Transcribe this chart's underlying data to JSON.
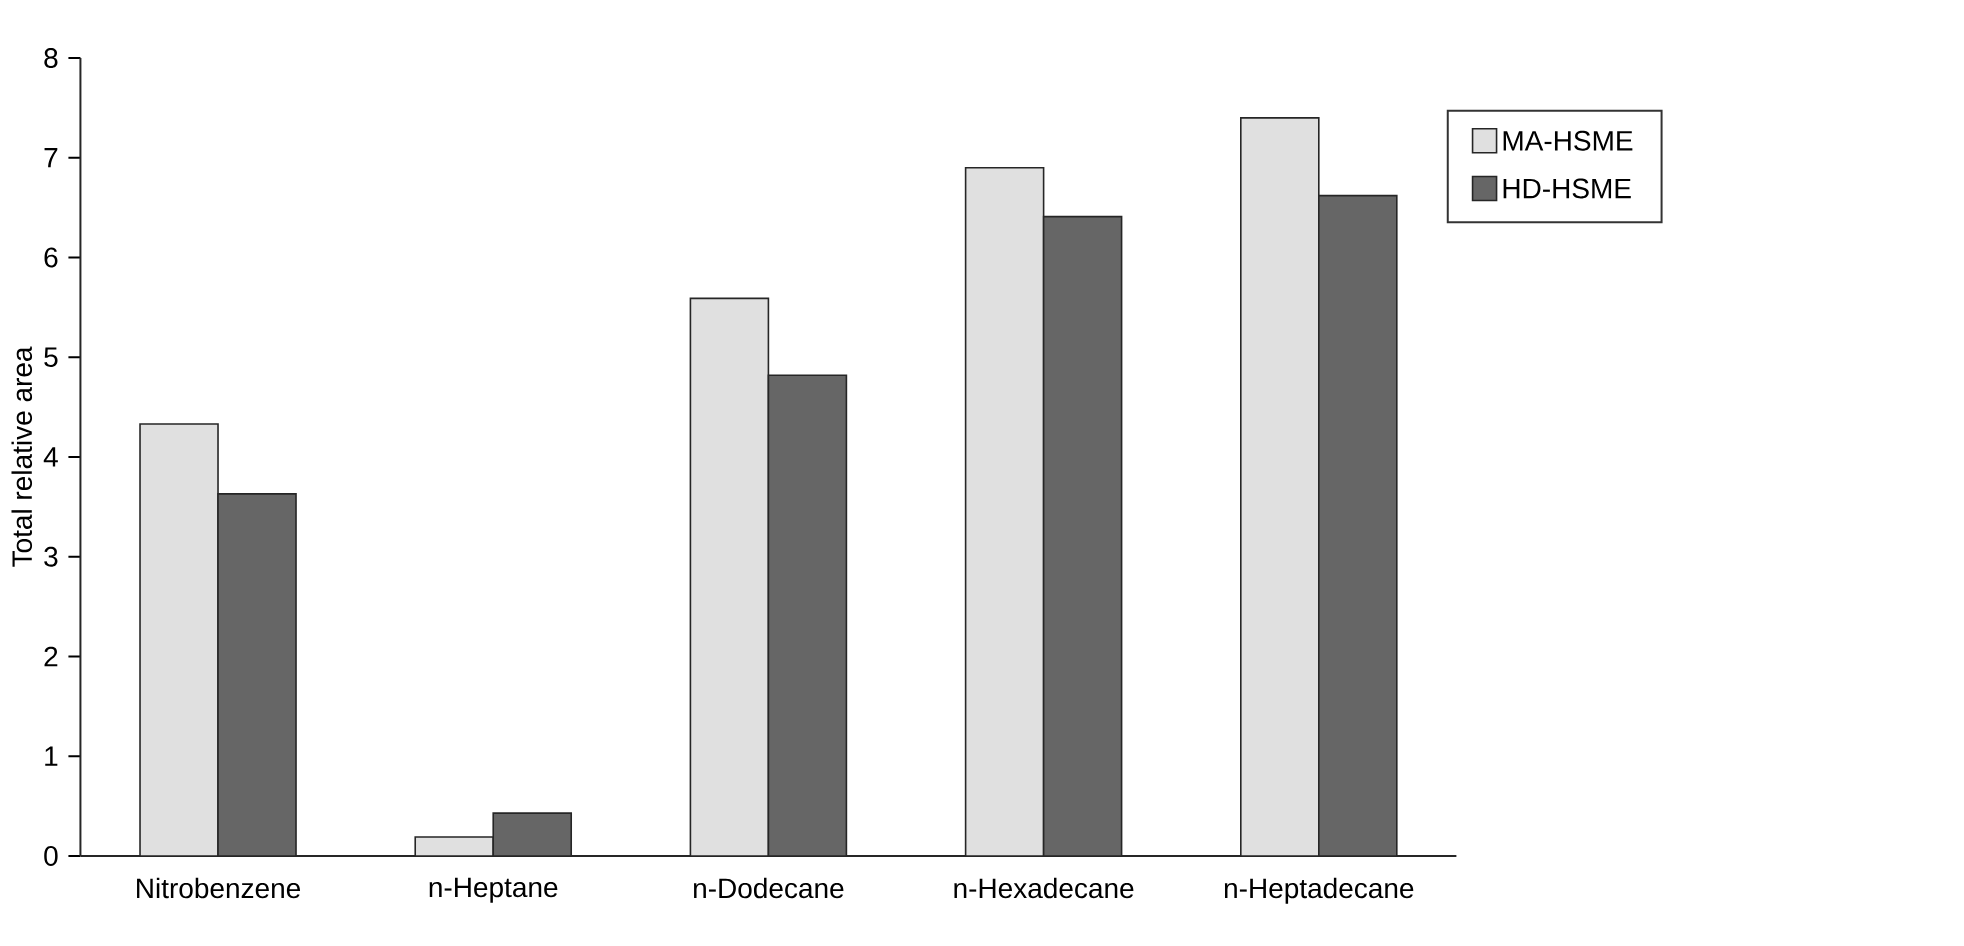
{
  "chart_data": {
    "type": "bar",
    "ylabel": "Total relative area",
    "categories": [
      "Nitrobenzene",
      "n-Heptane",
      "n-Dodecane",
      "n-Hexadecane",
      "n-Heptadecane"
    ],
    "series": [
      {
        "name": "MA-HSME",
        "color": "#e0e0e0",
        "values": [
          4.33,
          0.19,
          5.59,
          6.9,
          7.4
        ]
      },
      {
        "name": "HD-HSME",
        "color": "#666666",
        "values": [
          3.63,
          0.43,
          4.82,
          6.41,
          6.62
        ]
      }
    ],
    "ylim": [
      0,
      8
    ],
    "yticks": [
      0,
      1,
      2,
      3,
      4,
      5,
      6,
      7,
      8
    ],
    "legend": "top right"
  }
}
